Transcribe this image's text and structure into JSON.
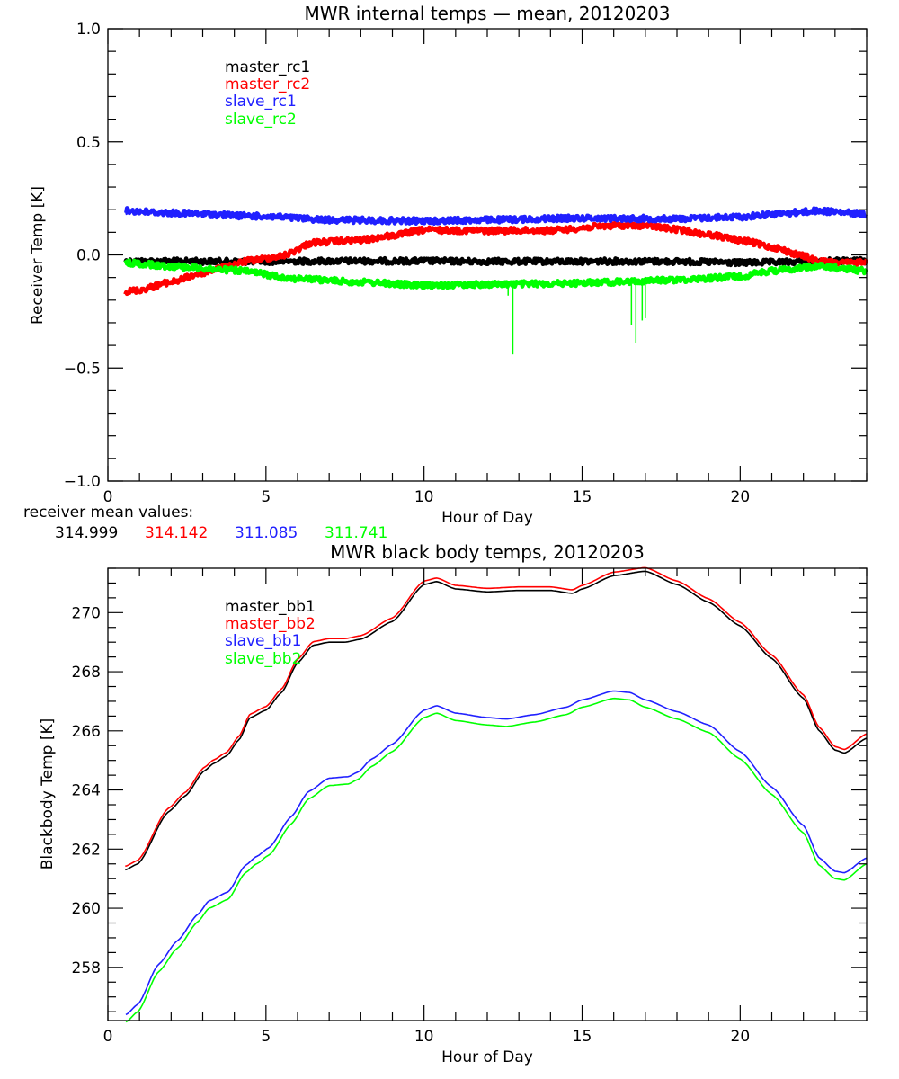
{
  "chart_data": [
    {
      "type": "line",
      "title": "MWR internal temps — mean, 20120203",
      "xlabel": "Hour of Day",
      "ylabel": "Receiver Temp [K]",
      "xlim": [
        0,
        24
      ],
      "ylim": [
        -1.0,
        1.0
      ],
      "xticks": [
        0,
        5,
        10,
        15,
        20
      ],
      "xtick_labels": [
        "0",
        "5",
        "10",
        "15",
        "20"
      ],
      "yticks": [
        -1.0,
        -0.5,
        0.0,
        0.5,
        1.0
      ],
      "ytick_labels": [
        "−1.0",
        "−0.5",
        "0.0",
        "0.5",
        "1.0"
      ],
      "grid": false,
      "legend_position": "top-left",
      "series": [
        {
          "name": "master_rc1",
          "color": "#000000",
          "x": [
            0.55,
            2,
            4,
            6,
            8,
            10,
            12,
            14,
            16,
            18,
            19,
            20,
            21,
            22,
            23,
            24
          ],
          "y": [
            -0.028,
            -0.028,
            -0.029,
            -0.028,
            -0.027,
            -0.027,
            -0.029,
            -0.029,
            -0.028,
            -0.029,
            -0.032,
            -0.035,
            -0.033,
            -0.03,
            -0.027,
            -0.026
          ]
        },
        {
          "name": "master_rc2",
          "color": "#ff0000",
          "x": [
            0.55,
            1,
            2,
            3,
            3.5,
            4.5,
            5.5,
            6.5,
            8,
            9,
            10,
            12,
            14,
            16,
            17,
            18,
            19,
            20,
            21,
            22,
            22.5,
            23.5,
            24
          ],
          "y": [
            -0.163,
            -0.155,
            -0.12,
            -0.08,
            -0.06,
            -0.025,
            -0.005,
            0.055,
            0.065,
            0.085,
            0.11,
            0.107,
            0.108,
            0.13,
            0.13,
            0.112,
            0.09,
            0.065,
            0.035,
            -0.005,
            -0.03,
            -0.037,
            -0.025
          ]
        },
        {
          "name": "slave_rc1",
          "color": "#2020ff",
          "x": [
            0.55,
            2,
            5,
            7,
            10,
            12,
            15,
            18,
            20,
            21,
            22.5,
            23.5,
            24
          ],
          "y": [
            0.195,
            0.185,
            0.17,
            0.155,
            0.15,
            0.155,
            0.163,
            0.16,
            0.168,
            0.18,
            0.195,
            0.185,
            0.18
          ]
        },
        {
          "name": "slave_rc2",
          "color": "#00ff00",
          "x": [
            0.55,
            2,
            4,
            6,
            8,
            10,
            12,
            14,
            16,
            18,
            20,
            21,
            22.5,
            24
          ],
          "y": [
            -0.035,
            -0.05,
            -0.068,
            -0.105,
            -0.12,
            -0.135,
            -0.13,
            -0.127,
            -0.12,
            -0.11,
            -0.095,
            -0.07,
            -0.05,
            -0.07
          ],
          "spikes": [
            {
              "x": 12.66,
              "y": -0.18
            },
            {
              "x": 12.81,
              "y": -0.44
            },
            {
              "x": 16.56,
              "y": -0.31
            },
            {
              "x": 16.7,
              "y": -0.39
            },
            {
              "x": 16.9,
              "y": -0.29
            },
            {
              "x": 17.0,
              "y": -0.28
            }
          ]
        }
      ],
      "annotation": {
        "label": "receiver mean values:",
        "values": [
          {
            "text": "314.999",
            "color": "#000000"
          },
          {
            "text": "314.142",
            "color": "#ff0000"
          },
          {
            "text": "311.085",
            "color": "#2020ff"
          },
          {
            "text": "311.741",
            "color": "#00ff00"
          }
        ]
      }
    },
    {
      "type": "line",
      "title": "MWR black body temps, 20120203",
      "xlabel": "Hour of Day",
      "ylabel": "Blackbody Temp [K]",
      "xlim": [
        0,
        24
      ],
      "ylim": [
        256.2,
        271.5
      ],
      "xticks": [
        0,
        5,
        10,
        15,
        20
      ],
      "xtick_labels": [
        "0",
        "5",
        "10",
        "15",
        "20"
      ],
      "yticks": [
        258,
        260,
        262,
        264,
        266,
        268,
        270
      ],
      "ytick_labels": [
        "258",
        "260",
        "262",
        "264",
        "266",
        "268",
        "270"
      ],
      "grid": false,
      "legend_position": "top-left",
      "series": [
        {
          "name": "master_bb1",
          "color": "#000000",
          "x": [
            0.55,
            0.95,
            1.9,
            2.45,
            3.05,
            3.35,
            3.75,
            4.15,
            4.5,
            5.0,
            5.5,
            6.0,
            6.5,
            7.0,
            7.5,
            8.0,
            9.0,
            10.0,
            10.4,
            11.0,
            12.0,
            13.0,
            14.0,
            14.7,
            15.0,
            16.0,
            17.0,
            18.0,
            19.0,
            20.0,
            21.0,
            22.0,
            22.5,
            23.0,
            23.3,
            24.0
          ],
          "y": [
            261.3,
            261.5,
            263.25,
            263.8,
            264.65,
            264.9,
            265.15,
            265.7,
            266.45,
            266.7,
            267.3,
            268.3,
            268.9,
            269.0,
            269.0,
            269.1,
            269.7,
            270.95,
            271.05,
            270.8,
            270.7,
            270.75,
            270.75,
            270.65,
            270.8,
            271.25,
            271.4,
            270.95,
            270.35,
            269.55,
            268.45,
            267.1,
            266.0,
            265.35,
            265.25,
            265.75
          ]
        },
        {
          "name": "master_bb2",
          "color": "#ff0000",
          "x": [
            0.55,
            0.95,
            1.9,
            2.45,
            3.05,
            3.35,
            3.75,
            4.15,
            4.5,
            5.0,
            5.5,
            6.0,
            6.5,
            7.0,
            7.5,
            8.0,
            9.0,
            10.0,
            10.4,
            11.0,
            12.0,
            13.0,
            14.0,
            14.7,
            15.0,
            16.0,
            17.0,
            18.0,
            19.0,
            20.0,
            21.0,
            22.0,
            22.5,
            23.0,
            23.3,
            24.0
          ],
          "y": [
            261.42,
            261.62,
            263.37,
            263.92,
            264.77,
            265.02,
            265.27,
            265.82,
            266.57,
            266.82,
            267.42,
            268.42,
            269.02,
            269.12,
            269.12,
            269.22,
            269.82,
            271.07,
            271.17,
            270.92,
            270.82,
            270.87,
            270.87,
            270.77,
            270.92,
            271.37,
            271.52,
            271.07,
            270.47,
            269.67,
            268.57,
            267.22,
            266.12,
            265.47,
            265.37,
            265.9
          ]
        },
        {
          "name": "slave_bb1",
          "color": "#2020ff",
          "x": [
            0.57,
            0.95,
            1.6,
            2.2,
            2.85,
            3.2,
            3.8,
            4.35,
            4.7,
            5.1,
            5.8,
            6.35,
            7.0,
            7.6,
            7.9,
            8.35,
            9.0,
            10.0,
            10.4,
            11.0,
            12.0,
            12.6,
            13.5,
            14.5,
            15.0,
            16.0,
            16.5,
            17.0,
            18.0,
            19.0,
            20.0,
            21.0,
            22.0,
            22.5,
            23.0,
            23.3,
            24.0
          ],
          "y": [
            256.4,
            256.75,
            258.1,
            258.9,
            259.8,
            260.25,
            260.55,
            261.45,
            261.75,
            262.05,
            263.1,
            263.95,
            264.4,
            264.45,
            264.6,
            265.05,
            265.55,
            266.7,
            266.85,
            266.6,
            266.45,
            266.4,
            266.55,
            266.8,
            267.05,
            267.35,
            267.3,
            267.05,
            266.65,
            266.2,
            265.3,
            264.1,
            262.8,
            261.7,
            261.25,
            261.2,
            261.7
          ]
        },
        {
          "name": "slave_bb2",
          "color": "#00ff00",
          "x": [
            0.57,
            0.95,
            1.6,
            2.2,
            2.85,
            3.2,
            3.8,
            4.35,
            4.7,
            5.1,
            5.8,
            6.35,
            7.0,
            7.6,
            7.9,
            8.35,
            9.0,
            10.0,
            10.4,
            11.0,
            12.0,
            12.6,
            13.5,
            14.5,
            15.0,
            16.0,
            16.5,
            17.0,
            18.0,
            19.0,
            20.0,
            21.0,
            22.0,
            22.5,
            23.0,
            23.3,
            24.0
          ],
          "y": [
            256.15,
            256.5,
            257.85,
            258.65,
            259.55,
            260.0,
            260.3,
            261.2,
            261.5,
            261.8,
            262.85,
            263.7,
            264.15,
            264.2,
            264.35,
            264.8,
            265.3,
            266.45,
            266.6,
            266.35,
            266.2,
            266.15,
            266.3,
            266.55,
            266.8,
            267.1,
            267.05,
            266.8,
            266.4,
            265.95,
            265.05,
            263.85,
            262.55,
            261.45,
            261.0,
            260.95,
            261.5
          ]
        }
      ]
    }
  ]
}
